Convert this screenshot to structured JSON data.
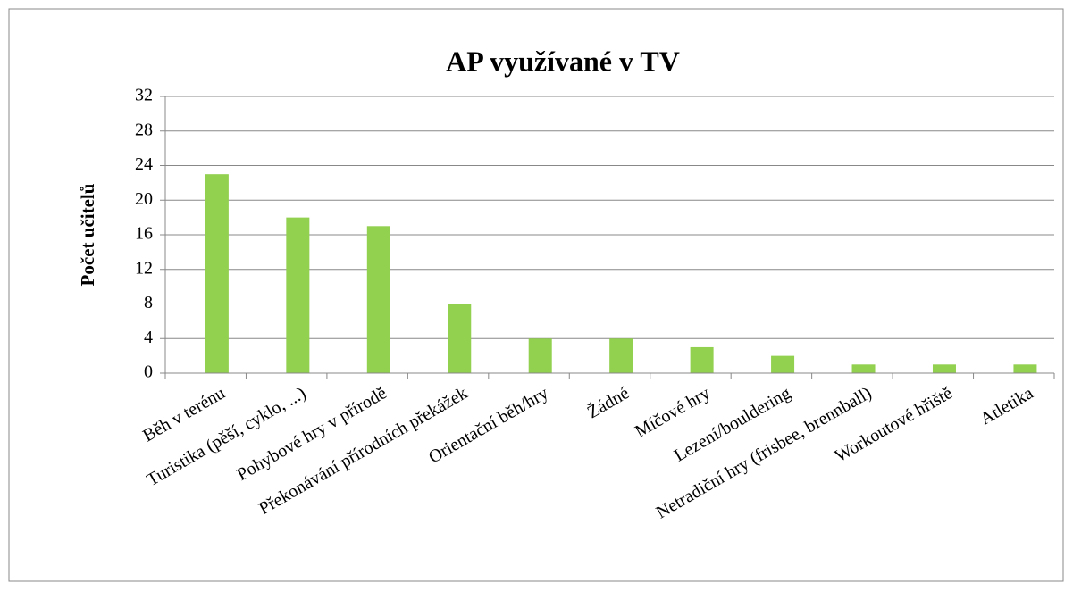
{
  "chart_data": {
    "type": "bar",
    "title": "AP využívané v TV",
    "y_label": "Počet učitelů",
    "categories": [
      "Běh v terénu",
      "Turistika (pěší, cyklo, ...)",
      "Pohybové hry v přírodě",
      "Překonávání přírodních překážek",
      "Orientační běh/hry",
      "Žádné",
      "Míčové hry",
      "Lezení/bouldering",
      "Netradiční hry (frisbee, brennball)",
      "Workoutové hřiště",
      "Atletika"
    ],
    "values": [
      23,
      18,
      17,
      8,
      4,
      4,
      3,
      2,
      1,
      1,
      1
    ],
    "color": "#92d050",
    "ylim": [
      0,
      32
    ],
    "yticks": [
      0,
      4,
      8,
      12,
      16,
      20,
      24,
      28,
      32
    ],
    "grid": true
  }
}
